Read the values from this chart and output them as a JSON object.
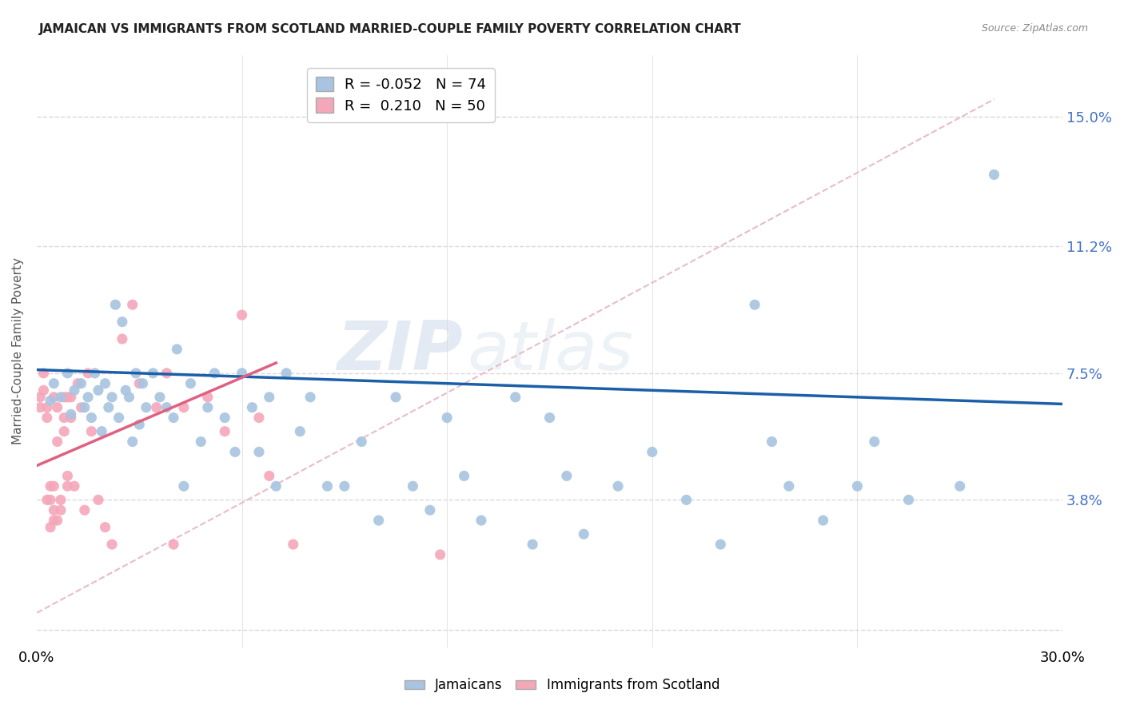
{
  "title": "JAMAICAN VS IMMIGRANTS FROM SCOTLAND MARRIED-COUPLE FAMILY POVERTY CORRELATION CHART",
  "source": "Source: ZipAtlas.com",
  "ylabel": "Married-Couple Family Poverty",
  "watermark": "ZIPatlas",
  "xlim": [
    0.0,
    0.3
  ],
  "ylim": [
    -0.005,
    0.168
  ],
  "yticks": [
    0.0,
    0.038,
    0.075,
    0.112,
    0.15
  ],
  "yticklabels": [
    "",
    "3.8%",
    "7.5%",
    "11.2%",
    "15.0%"
  ],
  "legend_blue_r": "-0.052",
  "legend_blue_n": "74",
  "legend_pink_r": "0.210",
  "legend_pink_n": "50",
  "blue_color": "#a8c4e0",
  "pink_color": "#f4a7b9",
  "blue_line_color": "#1a5fa8",
  "pink_line_color": "#e06080",
  "dash_line_color": "#e8bcc8",
  "grid_color": "#d8d8d8",
  "title_color": "#222222",
  "right_axis_color": "#4472c4",
  "marker_size": 90,
  "blue_line_x": [
    0.0,
    0.3
  ],
  "blue_line_y": [
    0.076,
    0.066
  ],
  "pink_line_x": [
    0.0,
    0.07
  ],
  "pink_line_y": [
    0.048,
    0.078
  ],
  "dash_line_x": [
    0.0,
    0.28
  ],
  "dash_line_y": [
    0.005,
    0.155
  ],
  "blue_scatter_x": [
    0.004,
    0.005,
    0.007,
    0.009,
    0.01,
    0.011,
    0.013,
    0.014,
    0.015,
    0.016,
    0.017,
    0.018,
    0.019,
    0.02,
    0.021,
    0.022,
    0.023,
    0.024,
    0.025,
    0.026,
    0.027,
    0.028,
    0.029,
    0.03,
    0.031,
    0.032,
    0.034,
    0.036,
    0.038,
    0.04,
    0.041,
    0.043,
    0.045,
    0.048,
    0.05,
    0.052,
    0.055,
    0.058,
    0.06,
    0.063,
    0.065,
    0.068,
    0.07,
    0.073,
    0.077,
    0.08,
    0.085,
    0.09,
    0.095,
    0.1,
    0.105,
    0.11,
    0.115,
    0.12,
    0.125,
    0.13,
    0.14,
    0.145,
    0.15,
    0.155,
    0.16,
    0.17,
    0.18,
    0.19,
    0.2,
    0.21,
    0.215,
    0.22,
    0.23,
    0.24,
    0.245,
    0.255,
    0.27,
    0.28
  ],
  "blue_scatter_y": [
    0.067,
    0.072,
    0.068,
    0.075,
    0.063,
    0.07,
    0.072,
    0.065,
    0.068,
    0.062,
    0.075,
    0.07,
    0.058,
    0.072,
    0.065,
    0.068,
    0.095,
    0.062,
    0.09,
    0.07,
    0.068,
    0.055,
    0.075,
    0.06,
    0.072,
    0.065,
    0.075,
    0.068,
    0.065,
    0.062,
    0.082,
    0.042,
    0.072,
    0.055,
    0.065,
    0.075,
    0.062,
    0.052,
    0.075,
    0.065,
    0.052,
    0.068,
    0.042,
    0.075,
    0.058,
    0.068,
    0.042,
    0.042,
    0.055,
    0.032,
    0.068,
    0.042,
    0.035,
    0.062,
    0.045,
    0.032,
    0.068,
    0.025,
    0.062,
    0.045,
    0.028,
    0.042,
    0.052,
    0.038,
    0.025,
    0.095,
    0.055,
    0.042,
    0.032,
    0.042,
    0.055,
    0.038,
    0.042,
    0.133
  ],
  "pink_scatter_x": [
    0.001,
    0.001,
    0.002,
    0.002,
    0.003,
    0.003,
    0.003,
    0.004,
    0.004,
    0.004,
    0.005,
    0.005,
    0.005,
    0.005,
    0.006,
    0.006,
    0.006,
    0.007,
    0.007,
    0.008,
    0.008,
    0.008,
    0.009,
    0.009,
    0.009,
    0.01,
    0.01,
    0.011,
    0.012,
    0.013,
    0.014,
    0.015,
    0.016,
    0.018,
    0.02,
    0.022,
    0.025,
    0.028,
    0.03,
    0.035,
    0.038,
    0.04,
    0.043,
    0.05,
    0.055,
    0.06,
    0.065,
    0.068,
    0.075,
    0.118
  ],
  "pink_scatter_y": [
    0.065,
    0.068,
    0.07,
    0.075,
    0.062,
    0.065,
    0.038,
    0.042,
    0.038,
    0.03,
    0.042,
    0.035,
    0.032,
    0.068,
    0.065,
    0.055,
    0.032,
    0.035,
    0.038,
    0.068,
    0.058,
    0.062,
    0.042,
    0.045,
    0.068,
    0.068,
    0.062,
    0.042,
    0.072,
    0.065,
    0.035,
    0.075,
    0.058,
    0.038,
    0.03,
    0.025,
    0.085,
    0.095,
    0.072,
    0.065,
    0.075,
    0.025,
    0.065,
    0.068,
    0.058,
    0.092,
    0.062,
    0.045,
    0.025,
    0.022
  ]
}
